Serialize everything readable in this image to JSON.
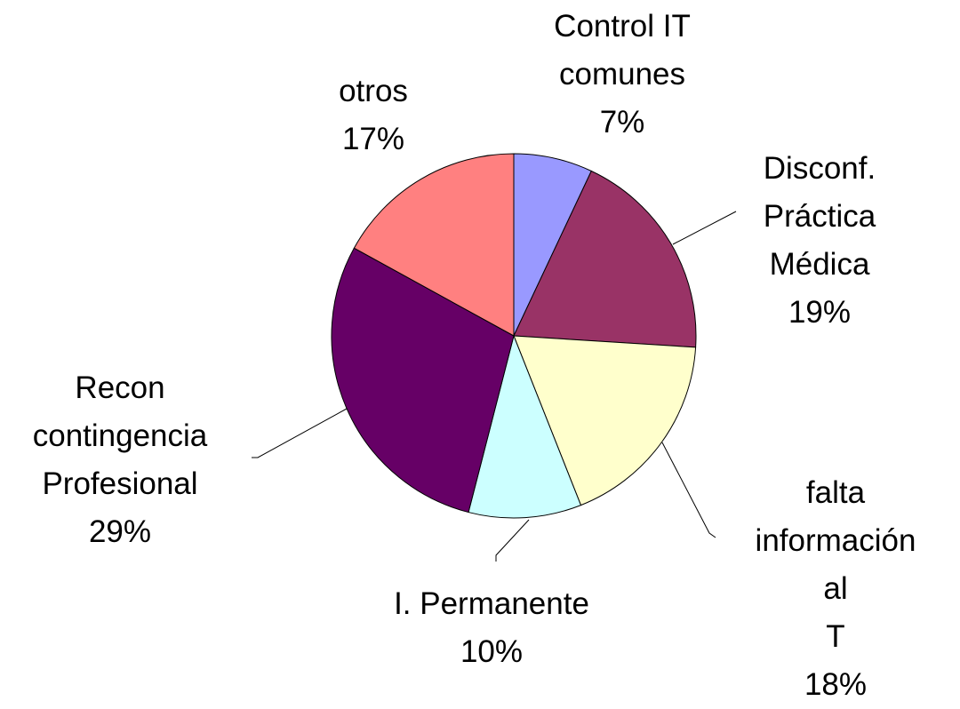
{
  "chart_data": {
    "type": "pie",
    "categories": [
      "Control  IT\ncomunes",
      "Disconf.\nPráctica\nMédica",
      "falta\ninformación al\nT",
      "I. Permanente",
      "Recon\ncontingencia\nProfesional",
      "otros"
    ],
    "values": [
      7,
      19,
      18,
      10,
      29,
      17
    ],
    "value_labels": [
      "7%",
      "19%",
      "18%",
      "10%",
      "29%",
      "17%"
    ],
    "colors": [
      "#9999ff",
      "#993366",
      "#ffffcc",
      "#ccffff",
      "#660066",
      "#ff8080"
    ]
  }
}
